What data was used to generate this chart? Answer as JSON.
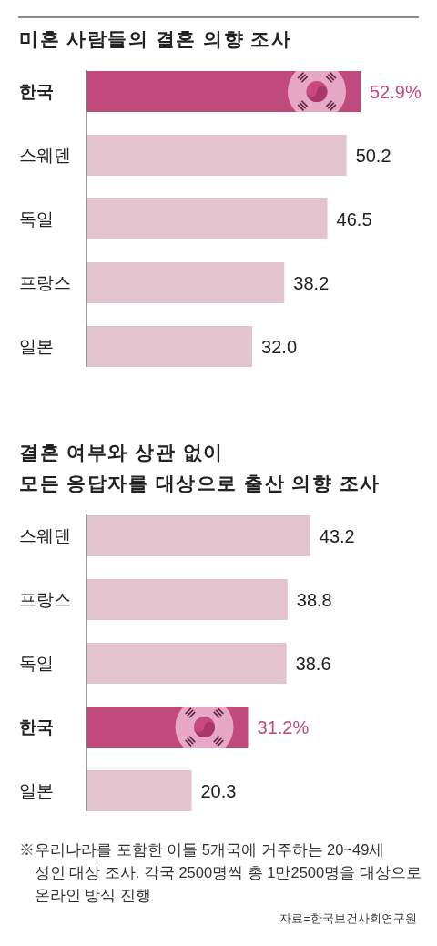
{
  "chart_data": [
    {
      "type": "bar",
      "orientation": "horizontal",
      "title": "미혼 사람들의 결혼 의향 조사",
      "categories": [
        "한국",
        "스웨덴",
        "독일",
        "프랑스",
        "일본"
      ],
      "values": [
        52.9,
        50.2,
        46.5,
        38.2,
        32.0
      ],
      "colors": [
        "#c04a7b",
        "#e3c3cd",
        "#e3c3cd",
        "#e3c3cd",
        "#e3c3cd"
      ],
      "value_labels": [
        "52.9%",
        "50.2",
        "46.5",
        "38.2",
        "32.0"
      ]
    },
    {
      "type": "bar",
      "orientation": "horizontal",
      "title": "결혼 여부와 상관 없이\n모든 응답자를 대상으로 출산 의향 조사",
      "categories": [
        "스웨덴",
        "프랑스",
        "독일",
        "한국",
        "일본"
      ],
      "values": [
        43.2,
        38.8,
        38.6,
        31.2,
        20.3
      ],
      "colors": [
        "#e3c3cd",
        "#e3c3cd",
        "#e3c3cd",
        "#c04a7b",
        "#e3c3cd"
      ],
      "value_labels": [
        "43.2",
        "38.8",
        "38.6",
        "31.2%",
        "20.3"
      ],
      "annotations": [
        "※우리나라를 포함한 이들 5개국에 거주하는 20~49세\n성인 대상 조사. 각국 2500명씩 총 1만2500명을 대상으로\n온라인 방식 진행",
        "자료=한국보건사회연구원"
      ]
    }
  ]
}
